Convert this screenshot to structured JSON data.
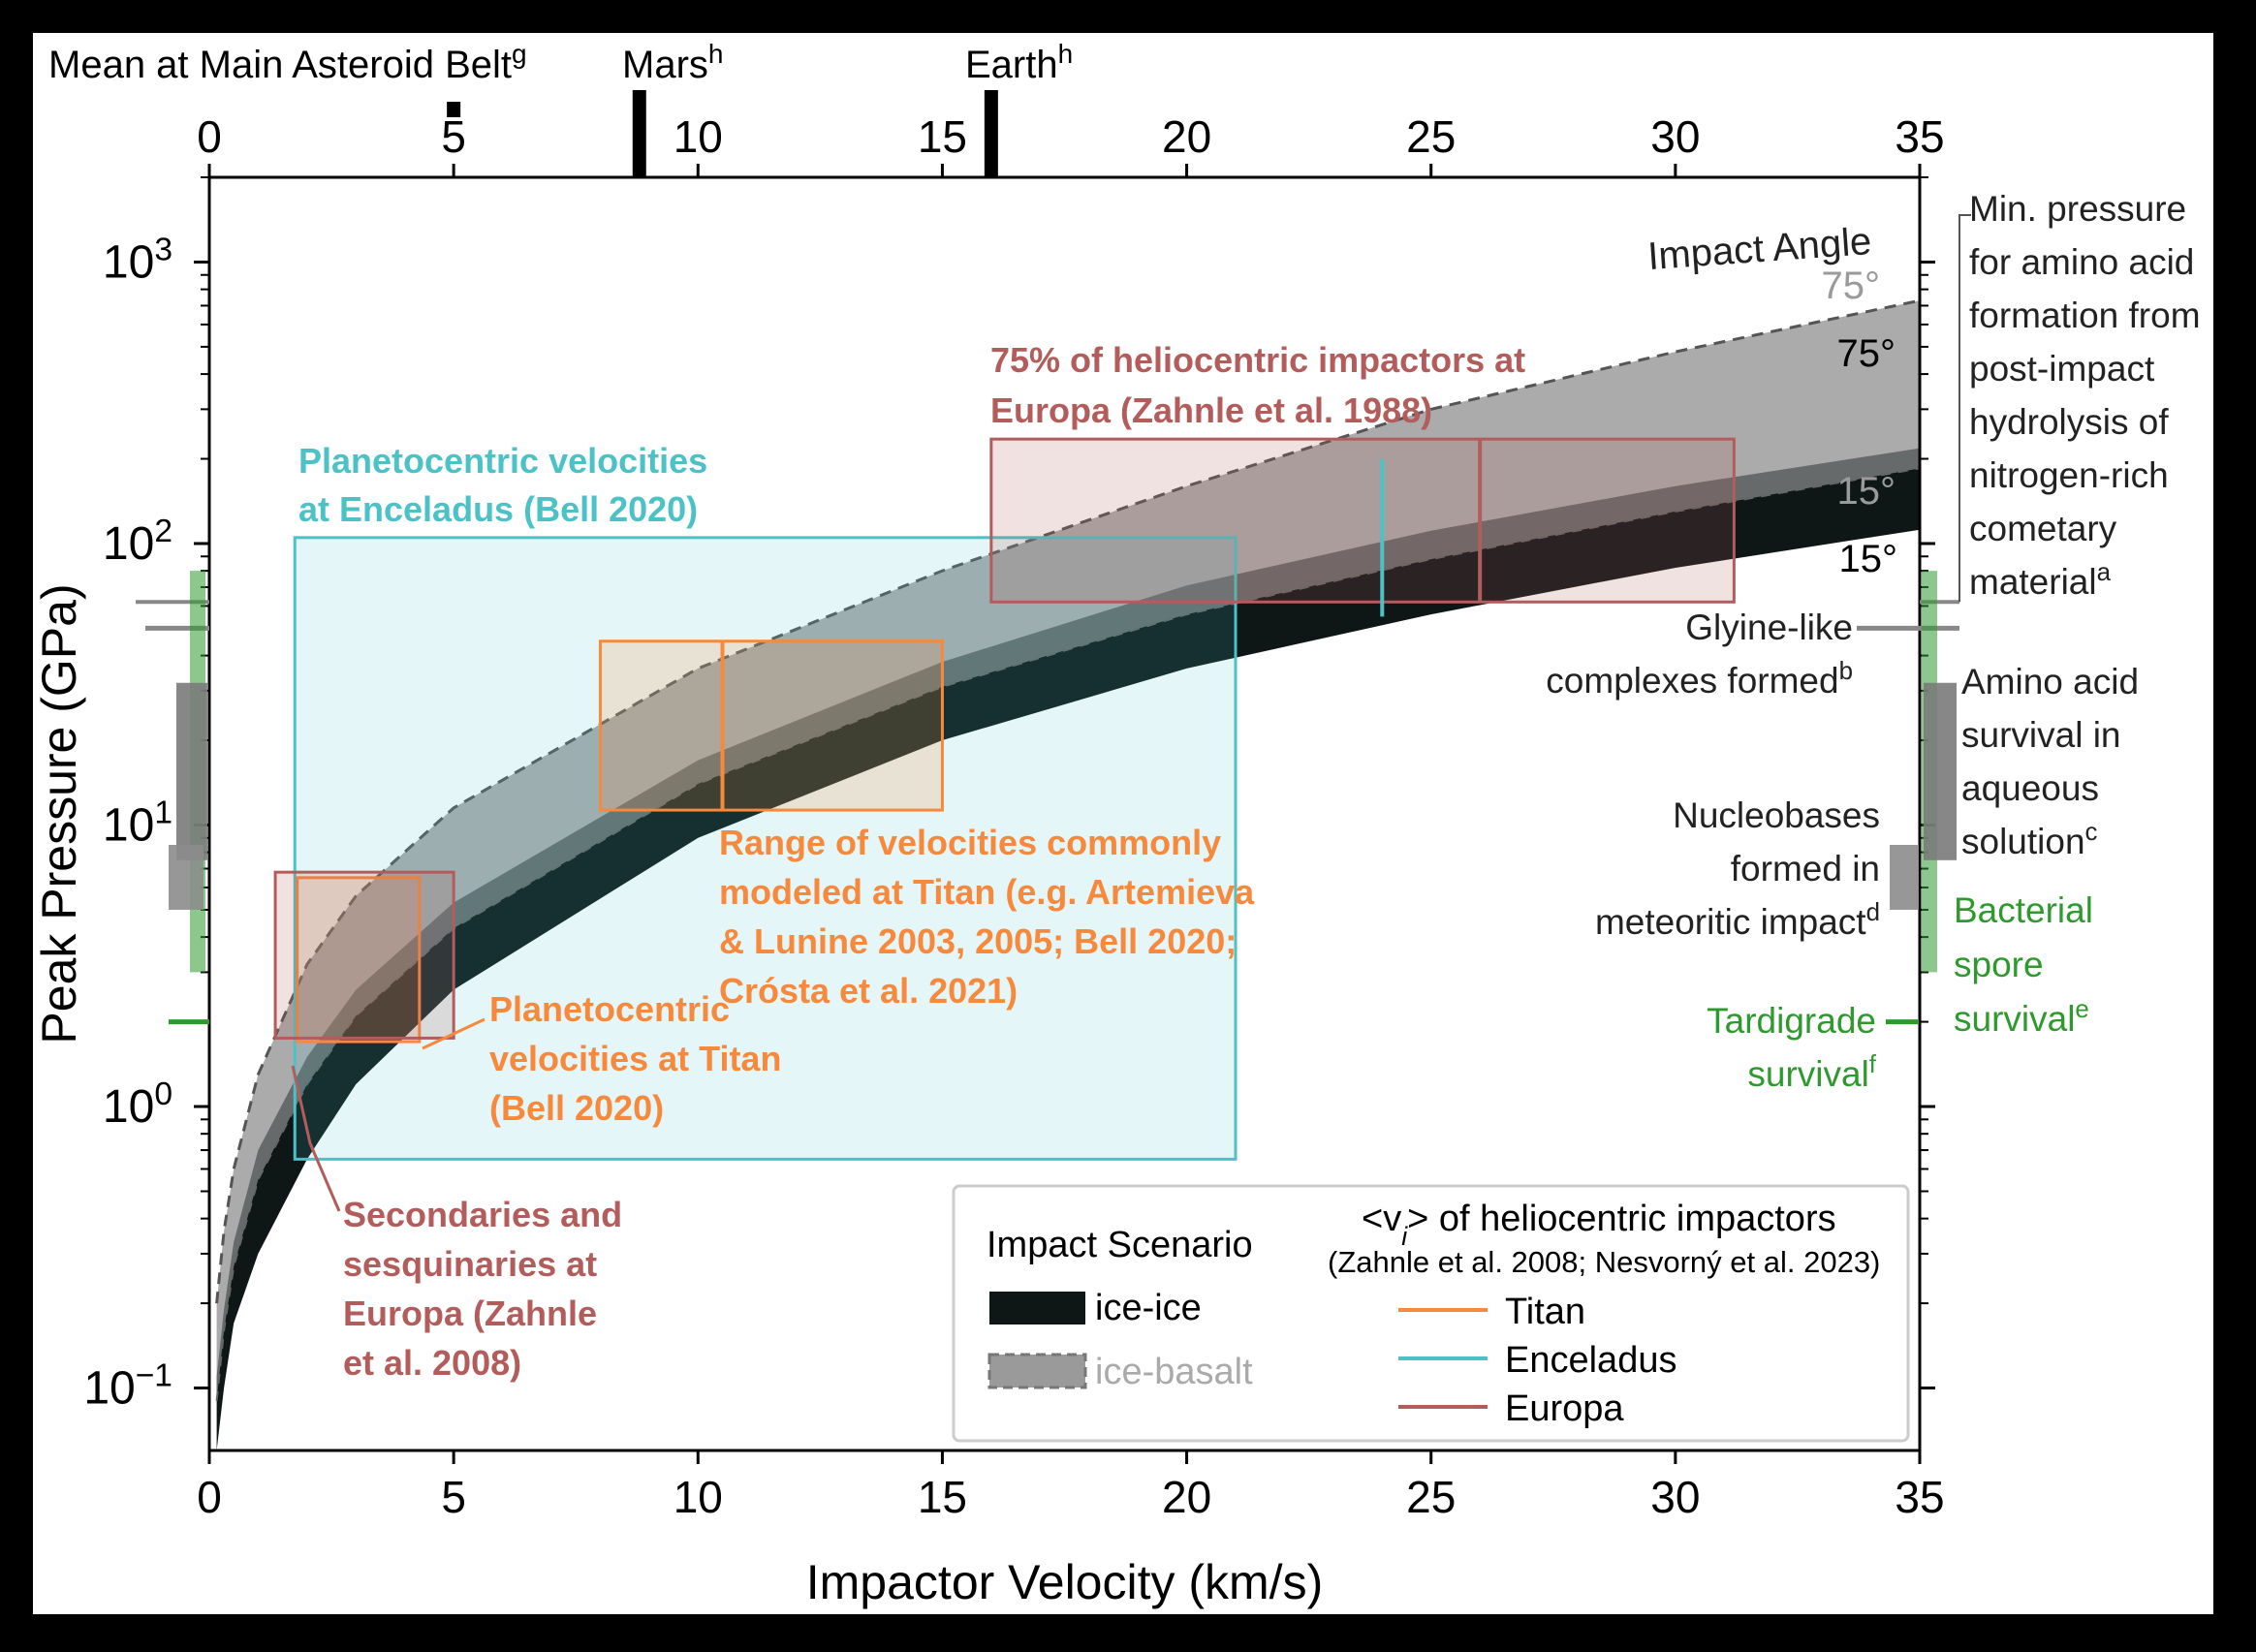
{
  "chart_data": {
    "type": "area",
    "title": "",
    "xlabel": "Impactor Velocity (km/s)",
    "ylabel": "Peak Pressure (GPa)",
    "xlim": [
      0,
      35
    ],
    "ylim": [
      0.06,
      2000
    ],
    "yscale": "log",
    "xticks": [
      "0",
      "5",
      "10",
      "15",
      "20",
      "25",
      "30",
      "35"
    ],
    "xtick_values": [
      0,
      5,
      10,
      15,
      20,
      25,
      30,
      35
    ],
    "yticks": [
      {
        "value": 0.1,
        "base": "10",
        "exp": "−1"
      },
      {
        "value": 1,
        "base": "10",
        "exp": "0"
      },
      {
        "value": 10,
        "base": "10",
        "exp": "1"
      },
      {
        "value": 100,
        "base": "10",
        "exp": "2"
      },
      {
        "value": 1000,
        "base": "10",
        "exp": "3"
      }
    ],
    "top_axis": {
      "markers": [
        {
          "name": "Mean at Main Asteroid Belt",
          "sup": "g",
          "v": 5
        },
        {
          "name": "Mars",
          "sup": "h",
          "v": 8.8
        },
        {
          "name": "Earth",
          "sup": "h",
          "v": 16
        }
      ]
    },
    "bands": [
      {
        "name": "ice-ice",
        "color": "#0e1616",
        "v": [
          0.15,
          0.3,
          0.5,
          1,
          2,
          3,
          5,
          10,
          15,
          20,
          25,
          30,
          35
        ],
        "lower_15deg": [
          0.06,
          0.1,
          0.17,
          0.3,
          0.65,
          1.2,
          2.6,
          9,
          20,
          36,
          56,
          82,
          112
        ],
        "upper_75deg": [
          0.11,
          0.19,
          0.33,
          0.7,
          1.5,
          2.6,
          5.3,
          17,
          38,
          71,
          111,
          160,
          218
        ]
      },
      {
        "name": "ice-basalt",
        "color": "#8a8a8a",
        "v": [
          0.15,
          0.3,
          0.5,
          1,
          2,
          3,
          5,
          10,
          15,
          20,
          25,
          30,
          35
        ],
        "lower_15deg": [
          0.09,
          0.16,
          0.27,
          0.55,
          1.2,
          2.1,
          4.3,
          14,
          31,
          56,
          88,
          130,
          185
        ],
        "upper_75deg": [
          0.2,
          0.36,
          0.6,
          1.3,
          3.2,
          5.6,
          11.5,
          36,
          80,
          160,
          300,
          480,
          730
        ]
      }
    ],
    "angle_labels": [
      {
        "text": "Impact Angle"
      },
      {
        "text": "75°",
        "band": "ice-basalt"
      },
      {
        "text": "75°",
        "band": "ice-ice"
      },
      {
        "text": "15°",
        "band": "ice-basalt"
      },
      {
        "text": "15°",
        "band": "ice-ice"
      }
    ],
    "boxes": [
      {
        "name": "Enceladus planetocentric",
        "series": "Enceladus",
        "v": [
          1.75,
          21
        ],
        "p": [
          0.65,
          105
        ],
        "label": [
          "Planetocentric velocities",
          "at Enceladus (Bell 2020)"
        ]
      },
      {
        "name": "Europa heliocentric 75%",
        "series": "Europa",
        "v": [
          16,
          31.2
        ],
        "p": [
          62,
          235
        ],
        "label": [
          "75% of heliocentric impactors at",
          "Europa (Zahnle et al. 1988)"
        ]
      },
      {
        "name": "Titan range commonly modeled",
        "series": "Titan",
        "v": [
          8,
          15
        ],
        "p": [
          11.3,
          45
        ],
        "label": [
          "Range of velocities commonly",
          "modeled at Titan (e.g. Artemieva",
          "& Lunine 2003, 2005; Bell 2020;",
          "Crósta et al. 2021)"
        ]
      },
      {
        "name": "Titan planetocentric",
        "series": "Titan",
        "v": [
          1.8,
          4.3
        ],
        "p": [
          1.7,
          6.5
        ],
        "label": [
          "Planetocentric",
          "velocities at Titan",
          "(Bell 2020)"
        ]
      },
      {
        "name": "Europa secondaries and sesquinaries",
        "series": "Europa",
        "v": [
          1.35,
          5
        ],
        "p": [
          1.75,
          6.8
        ],
        "label": [
          "Secondaries and",
          "sesquinaries at",
          "Europa (Zahnle",
          "et al. 2008)"
        ]
      }
    ],
    "vlines": [
      {
        "series": "Titan",
        "v": 10.5,
        "p": [
          11.3,
          45
        ]
      },
      {
        "series": "Enceladus",
        "v": 24,
        "p": [
          55,
          200
        ]
      },
      {
        "series": "Europa",
        "v": 26,
        "p": [
          62,
          235
        ]
      }
    ],
    "thresholds": [
      {
        "side": "right",
        "kind": "line",
        "value": 62,
        "label": [
          "Min. pressure",
          "for amino acid",
          "formation from",
          "post-impact",
          "hydrolysis of",
          "nitrogen-rich",
          "cometary",
          "material"
        ],
        "sup": "a",
        "color": "#888888"
      },
      {
        "side": "right",
        "kind": "line",
        "value": 50,
        "label": [
          "Glyine-like",
          "complexes formed"
        ],
        "sup": "b",
        "color": "#888888"
      },
      {
        "side": "right",
        "kind": "range",
        "range": [
          7.5,
          32
        ],
        "label": [
          "Amino acid",
          "survival in",
          "aqueous",
          "solution"
        ],
        "sup": "c",
        "color": "#7a7a7a"
      },
      {
        "side": "right",
        "kind": "range",
        "range": [
          5,
          8.5
        ],
        "label": [
          "Nucleobases",
          "formed in",
          "meteoritic impact"
        ],
        "sup": "d",
        "color": "#8c8c8c"
      },
      {
        "side": "right",
        "kind": "range",
        "range": [
          3,
          80
        ],
        "label": [
          "Bacterial",
          "spore",
          "survival"
        ],
        "sup": "e",
        "color": "#2e9a2e"
      },
      {
        "side": "right",
        "kind": "line",
        "value": 2,
        "label": [
          "Tardigrade",
          "survival"
        ],
        "sup": "f",
        "color": "#2e9a2e"
      }
    ],
    "legend": {
      "scenario_title": "Impact Scenario",
      "scenarios": [
        "ice-ice",
        "ice-basalt"
      ],
      "series_title_pre": "<v",
      "series_title_sub": "i",
      "series_title_post": "> of heliocentric impactors",
      "series_subtitle": "(Zahnle et al. 2008; Nesvorný et al. 2023)",
      "series": [
        {
          "name": "Titan",
          "color": "#f7893c"
        },
        {
          "name": "Enceladus",
          "color": "#4cc2c6"
        },
        {
          "name": "Europa",
          "color": "#b35c5c"
        }
      ]
    }
  }
}
